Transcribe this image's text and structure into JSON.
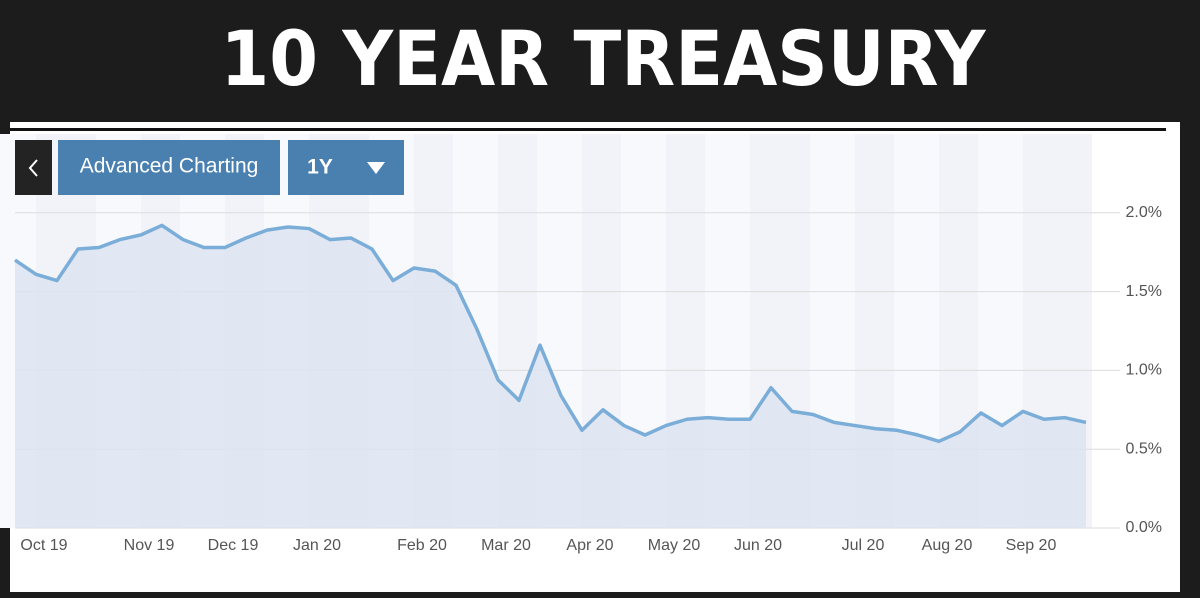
{
  "header": {
    "title": "10 YEAR TREASURY"
  },
  "toolbar": {
    "button": "Advanced Charting",
    "range": "1Y"
  },
  "chart_data": {
    "type": "line",
    "color": "#7badd9",
    "fill": "#dde4f1",
    "grid": true,
    "categories": [
      null,
      "Oct 19",
      null,
      null,
      null,
      null,
      "Nov 19",
      null,
      null,
      null,
      "Dec 19",
      null,
      null,
      null,
      "Jan 20",
      null,
      null,
      null,
      null,
      "Feb 20",
      null,
      null,
      null,
      "Mar 20",
      null,
      null,
      null,
      "Apr 20",
      null,
      null,
      null,
      "May 20",
      null,
      null,
      null,
      "Jun 20",
      null,
      null,
      null,
      null,
      "Jul 20",
      null,
      null,
      null,
      "Aug 20",
      null,
      null,
      null,
      "Sep 20",
      null,
      null,
      null
    ],
    "values": [
      1.7,
      1.61,
      1.57,
      1.77,
      1.78,
      1.83,
      1.86,
      1.92,
      1.83,
      1.78,
      1.78,
      1.84,
      1.89,
      1.91,
      1.9,
      1.83,
      1.84,
      1.77,
      1.57,
      1.65,
      1.63,
      1.54,
      1.26,
      0.94,
      0.81,
      1.16,
      0.84,
      0.62,
      0.75,
      0.65,
      0.59,
      0.65,
      0.69,
      0.7,
      0.69,
      0.69,
      0.89,
      0.74,
      0.72,
      0.67,
      0.65,
      0.63,
      0.62,
      0.59,
      0.55,
      0.61,
      0.73,
      0.65,
      0.74,
      0.69,
      0.7,
      0.67
    ],
    "ylim": [
      0,
      2.5
    ],
    "yticks": [
      {
        "value": 0,
        "label": "0.0%"
      },
      {
        "value": 0.5,
        "label": "0.5%"
      },
      {
        "value": 1,
        "label": "1.0%"
      },
      {
        "value": 1.5,
        "label": "1.5%"
      },
      {
        "value": 2,
        "label": "2.0%"
      }
    ]
  }
}
